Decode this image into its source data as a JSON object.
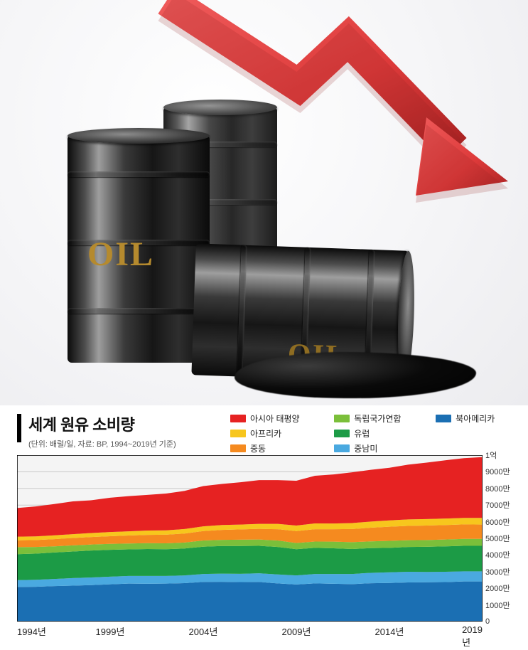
{
  "hero": {
    "barrel_label": "OIL",
    "barrel_label_color": "#b58a2e",
    "arrow_color": "#dd3a3a",
    "arrow_shadow": "#8f2020",
    "arrow_points": [
      [
        240,
        10
      ],
      [
        420,
        110
      ],
      [
        480,
        55
      ],
      [
        680,
        260
      ]
    ]
  },
  "chart": {
    "type": "stacked-area",
    "title": "세계 원유 소비량",
    "subtitle": "(단위: 배럴/일, 자료: BP, 1994~2019년 기준)",
    "title_fontsize": 22,
    "subtitle_fontsize": 11,
    "background_color": "#f4f4f4",
    "grid_color": "#c9c9c9",
    "axis_color": "#000000",
    "y_max": 100000000,
    "y_ticks": [
      {
        "v": 100000000,
        "label": "1억"
      },
      {
        "v": 90000000,
        "label": "9000만"
      },
      {
        "v": 80000000,
        "label": "8000만"
      },
      {
        "v": 70000000,
        "label": "7000만"
      },
      {
        "v": 60000000,
        "label": "6000만"
      },
      {
        "v": 50000000,
        "label": "5000만"
      },
      {
        "v": 40000000,
        "label": "4000만"
      },
      {
        "v": 30000000,
        "label": "3000만"
      },
      {
        "v": 20000000,
        "label": "2000만"
      },
      {
        "v": 10000000,
        "label": "1000만"
      },
      {
        "v": 0,
        "label": "0"
      }
    ],
    "x_years": [
      1994,
      1995,
      1996,
      1997,
      1998,
      1999,
      2000,
      2001,
      2002,
      2003,
      2004,
      2005,
      2006,
      2007,
      2008,
      2009,
      2010,
      2011,
      2012,
      2013,
      2014,
      2015,
      2016,
      2017,
      2018,
      2019
    ],
    "x_tick_labels": [
      "1994년",
      "1999년",
      "2004년",
      "2009년",
      "2014년",
      "2019년"
    ],
    "x_tick_years": [
      1994,
      1999,
      2004,
      2009,
      2014,
      2019
    ],
    "legend": [
      {
        "key": "asia",
        "label": "아시아 태평양",
        "color": "#e62222"
      },
      {
        "key": "cis",
        "label": "독립국가연합",
        "color": "#7bbf3a"
      },
      {
        "key": "nam",
        "label": "북아메리카",
        "color": "#1b6fb3"
      },
      {
        "key": "africa",
        "label": "아프리카",
        "color": "#f7c61d"
      },
      {
        "key": "europe",
        "label": "유럽",
        "color": "#1c9b46"
      },
      {
        "key": "",
        "label": "",
        "color": ""
      },
      {
        "key": "mideast",
        "label": "중동",
        "color": "#f58a1f"
      },
      {
        "key": "latam",
        "label": "중남미",
        "color": "#4aa9e0"
      }
    ],
    "stack_order": [
      "nam",
      "latam",
      "europe",
      "cis",
      "mideast",
      "africa",
      "asia"
    ],
    "series_colors": {
      "nam": "#1b6fb3",
      "latam": "#4aa9e0",
      "europe": "#1c9b46",
      "cis": "#7bbf3a",
      "mideast": "#f58a1f",
      "africa": "#f7c61d",
      "asia": "#e62222"
    },
    "series": {
      "nam": [
        20800000,
        20900000,
        21300000,
        21600000,
        21900000,
        22400000,
        22800000,
        22700000,
        22800000,
        23100000,
        23800000,
        23900000,
        23700000,
        23800000,
        22900000,
        22300000,
        22900000,
        22700000,
        22500000,
        23000000,
        23200000,
        23500000,
        23600000,
        23700000,
        24100000,
        24100000
      ],
      "latam": [
        4100000,
        4200000,
        4300000,
        4500000,
        4600000,
        4600000,
        4600000,
        4700000,
        4600000,
        4600000,
        4800000,
        4900000,
        5000000,
        5200000,
        5400000,
        5400000,
        5700000,
        5900000,
        6100000,
        6300000,
        6400000,
        6400000,
        6200000,
        6200000,
        6100000,
        6100000
      ],
      "europe": [
        15600000,
        15700000,
        15900000,
        16000000,
        16200000,
        16100000,
        16000000,
        16200000,
        16100000,
        16200000,
        16400000,
        16600000,
        16700000,
        16500000,
        16500000,
        15800000,
        15700000,
        15400000,
        15000000,
        14800000,
        14700000,
        14900000,
        15100000,
        15300000,
        15300000,
        15300000
      ],
      "cis": [
        4200000,
        4000000,
        3700000,
        3700000,
        3600000,
        3600000,
        3500000,
        3500000,
        3500000,
        3600000,
        3700000,
        3700000,
        3800000,
        3800000,
        3900000,
        3700000,
        3800000,
        4000000,
        4100000,
        4100000,
        4200000,
        4100000,
        4100000,
        4100000,
        4200000,
        4200000
      ],
      "mideast": [
        4100000,
        4200000,
        4300000,
        4400000,
        4500000,
        4600000,
        4800000,
        5000000,
        5200000,
        5400000,
        5700000,
        6000000,
        6200000,
        6400000,
        6800000,
        7200000,
        7400000,
        7500000,
        7900000,
        8200000,
        8500000,
        8600000,
        8700000,
        8700000,
        8700000,
        8600000
      ],
      "africa": [
        2200000,
        2200000,
        2300000,
        2300000,
        2400000,
        2500000,
        2500000,
        2600000,
        2600000,
        2700000,
        2800000,
        2900000,
        2900000,
        3000000,
        3200000,
        3300000,
        3500000,
        3400000,
        3600000,
        3700000,
        3800000,
        3900000,
        3900000,
        3900000,
        3900000,
        4000000
      ],
      "asia": [
        17200000,
        18000000,
        18800000,
        19700000,
        19700000,
        20600000,
        21200000,
        21400000,
        22100000,
        22900000,
        24200000,
        24700000,
        25400000,
        26300000,
        26300000,
        26900000,
        28600000,
        29500000,
        30500000,
        31100000,
        31600000,
        32900000,
        33900000,
        35000000,
        35900000,
        36500000
      ]
    }
  }
}
